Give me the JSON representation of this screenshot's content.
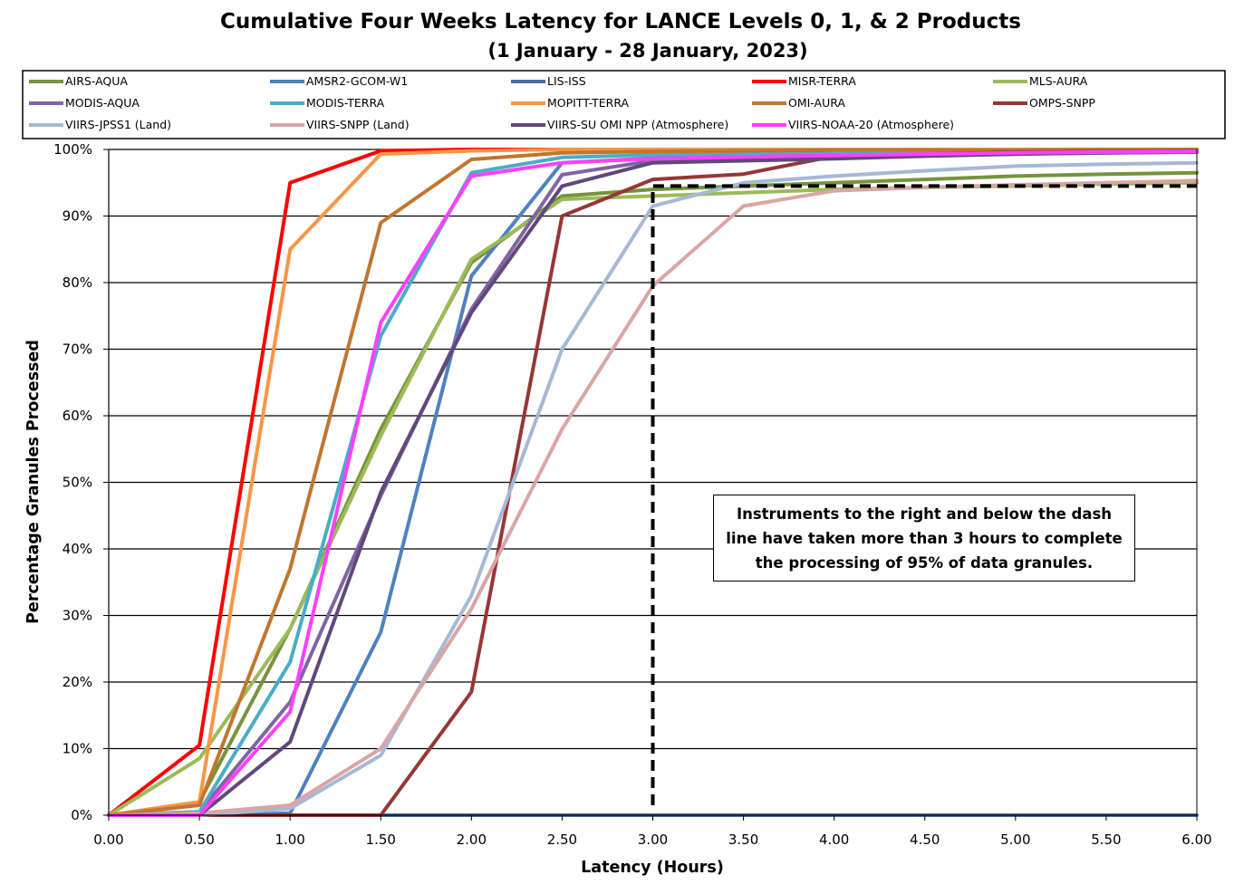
{
  "chart_data": {
    "type": "line",
    "title": "Cumulative Four Weeks Latency  for LANCE Levels 0, 1, & 2 Products",
    "subtitle": "(1  January   -  28  January,  2023)",
    "xlabel": "Latency (Hours)",
    "ylabel": "Percentage Granules Processed",
    "xlim": [
      0,
      6
    ],
    "ylim": [
      0,
      100
    ],
    "grid": "horizontal",
    "legend_position": "top",
    "x": [
      0,
      0.5,
      1,
      1.5,
      2,
      2.5,
      3,
      3.5,
      4,
      4.5,
      5,
      5.5,
      6
    ],
    "x_tick_labels": [
      "0.00",
      "0.50",
      "1.00",
      "1.50",
      "2.00",
      "2.50",
      "3.00",
      "3.50",
      "4.00",
      "4.50",
      "5.00",
      "5.50",
      "6.00"
    ],
    "y_ticks": [
      0,
      10,
      20,
      30,
      40,
      50,
      60,
      70,
      80,
      90,
      100
    ],
    "y_tick_labels": [
      "0%",
      "10%",
      "20%",
      "30%",
      "40%",
      "50%",
      "60%",
      "70%",
      "80%",
      "90%",
      "100%"
    ],
    "series": [
      {
        "name": "AIRS-AQUA",
        "color": "#77933C",
        "values": [
          0,
          2.0,
          28.0,
          58.0,
          83.0,
          93.0,
          94.0,
          94.5,
          95.0,
          95.5,
          96.0,
          96.3,
          96.5
        ]
      },
      {
        "name": "AMSR2-GCOM-W1",
        "color": "#4F81BD",
        "values": [
          0,
          0,
          0.3,
          27.5,
          81.0,
          98.0,
          98.7,
          99.0,
          99.2,
          99.4,
          99.6,
          99.7,
          99.8
        ]
      },
      {
        "name": "LIS-ISS",
        "color": "#4A6FA5",
        "values": [
          0,
          0,
          0,
          0,
          0,
          0,
          0,
          0,
          0,
          0,
          0,
          0,
          0
        ]
      },
      {
        "name": "MISR-TERRA",
        "color": "#FF0000",
        "values": [
          0,
          10.5,
          95.0,
          99.8,
          100,
          100,
          100,
          100,
          100,
          100,
          100,
          100,
          100
        ]
      },
      {
        "name": "MLS-AURA",
        "color": "#9BBB59",
        "values": [
          0,
          8.5,
          28.0,
          57.0,
          83.5,
          92.5,
          93.0,
          93.5,
          94.0,
          94.3,
          94.5,
          94.8,
          95.0
        ]
      },
      {
        "name": "MODIS-AQUA",
        "color": "#8064A2",
        "values": [
          0,
          0.5,
          17.0,
          48.0,
          76.0,
          96.2,
          98.3,
          98.6,
          98.8,
          99.1,
          99.3,
          99.5,
          99.6
        ]
      },
      {
        "name": "MODIS-TERRA",
        "color": "#4BACC6",
        "values": [
          0,
          0.5,
          23.0,
          72.0,
          96.5,
          98.8,
          99.2,
          99.4,
          99.6,
          99.7,
          99.8,
          99.9,
          99.9
        ]
      },
      {
        "name": "MOPITT-TERRA",
        "color": "#F79646",
        "values": [
          0,
          2.0,
          85.0,
          99.3,
          99.8,
          100,
          100,
          100,
          100,
          100,
          100,
          100,
          100
        ]
      },
      {
        "name": "OMI-AURA",
        "color": "#C0762F",
        "values": [
          0,
          1.5,
          37.0,
          89.0,
          98.5,
          99.5,
          99.7,
          99.8,
          99.9,
          99.9,
          99.9,
          100,
          100
        ]
      },
      {
        "name": "OMPS-SNPP",
        "color": "#953735",
        "values": [
          0,
          0,
          0,
          0,
          18.5,
          90.0,
          95.5,
          96.3,
          99.0,
          99.3,
          99.6,
          99.7,
          99.8
        ]
      },
      {
        "name": "VIIRS-JPSS1 (Land)",
        "color": "#A6B8D6",
        "values": [
          0,
          0,
          1.0,
          9.0,
          33.0,
          70.0,
          91.5,
          95.0,
          96.0,
          96.8,
          97.5,
          97.8,
          98.0
        ]
      },
      {
        "name": "VIIRS-SNPP (Land)",
        "color": "#D9A5A5",
        "values": [
          0,
          0.3,
          1.5,
          10.0,
          31.0,
          58.0,
          79.5,
          91.5,
          93.8,
          94.3,
          94.7,
          95.0,
          95.3
        ]
      },
      {
        "name": "VIIRS-SU OMI NPP (Atmosphere)",
        "color": "#60497A",
        "values": [
          0,
          0,
          11.0,
          48.5,
          75.5,
          94.5,
          98.0,
          98.3,
          98.6,
          99.0,
          99.3,
          99.5,
          99.6
        ]
      },
      {
        "name": "VIIRS-NOAA-20 (Atmosphere)",
        "color": "#FF40FF",
        "values": [
          0,
          0,
          15.5,
          74.0,
          96.0,
          98.0,
          98.6,
          98.9,
          99.1,
          99.3,
          99.5,
          99.6,
          99.7
        ]
      }
    ],
    "reference_line": {
      "style": "dashed",
      "color": "#000000",
      "points": [
        [
          3.0,
          1.5
        ],
        [
          3.0,
          94.5
        ],
        [
          6.0,
          94.5
        ]
      ]
    },
    "annotation": "Instruments to the right and below the dash line have taken more than 3 hours to complete the processing of 95% of data granules."
  }
}
